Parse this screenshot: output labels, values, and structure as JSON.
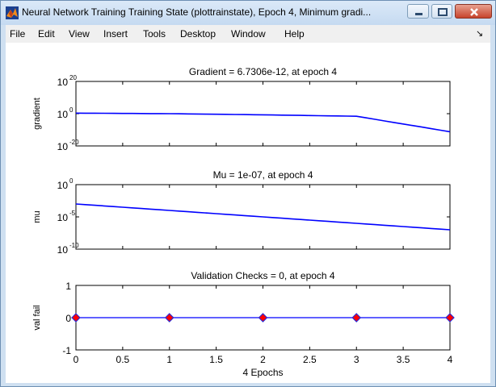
{
  "window": {
    "title": "Neural Network Training Training State (plottrainstate), Epoch 4, Minimum gradi...",
    "controls": {
      "minimize": "minimize",
      "maximize": "maximize",
      "close": "close"
    }
  },
  "menu": [
    "File",
    "Edit",
    "View",
    "Insert",
    "Tools",
    "Desktop",
    "Window",
    "Help"
  ],
  "dock_glyph": "↘",
  "colors": {
    "line": "#0000ff",
    "marker_fill": "#ff0000",
    "marker_edge": "#2a2ad6",
    "frame": "#000000"
  },
  "chart_data": [
    {
      "type": "line",
      "title": "Gradient = 6.7306e-12, at epoch 4",
      "ylabel": "gradient",
      "yscale": "log",
      "ytick_labels": [
        {
          "base": "10",
          "exp": "20"
        },
        {
          "base": "10",
          "exp": "0"
        },
        {
          "base": "10",
          "exp": "-20"
        }
      ],
      "ylim_exp": [
        -20,
        20
      ],
      "x": [
        0,
        1,
        2,
        3,
        4
      ],
      "y_exp": [
        0.35,
        0.0,
        -0.7,
        -1.6,
        -11.2
      ],
      "grid": false
    },
    {
      "type": "line",
      "title": "Mu = 1e-07, at epoch 4",
      "ylabel": "mu",
      "yscale": "log",
      "ytick_labels": [
        {
          "base": "10",
          "exp": "0"
        },
        {
          "base": "10",
          "exp": "-5"
        },
        {
          "base": "10",
          "exp": "-10"
        }
      ],
      "ylim_exp": [
        -10,
        0
      ],
      "x": [
        0,
        1,
        2,
        3,
        4
      ],
      "y_exp": [
        -3,
        -4,
        -5,
        -6,
        -7
      ],
      "grid": false
    },
    {
      "type": "scatter",
      "title": "Validation Checks = 0, at epoch 4",
      "ylabel": "val fail",
      "xlabel": "4 Epochs",
      "ytick_labels": [
        "1",
        "0",
        "-1"
      ],
      "ylim": [
        -1,
        1
      ],
      "x": [
        0,
        1,
        2,
        3,
        4
      ],
      "y": [
        0,
        0,
        0,
        0,
        0
      ],
      "xtick_labels": [
        "0",
        "0.5",
        "1",
        "1.5",
        "2",
        "2.5",
        "3",
        "3.5",
        "4"
      ],
      "xlim": [
        0,
        4
      ],
      "grid": false
    }
  ]
}
